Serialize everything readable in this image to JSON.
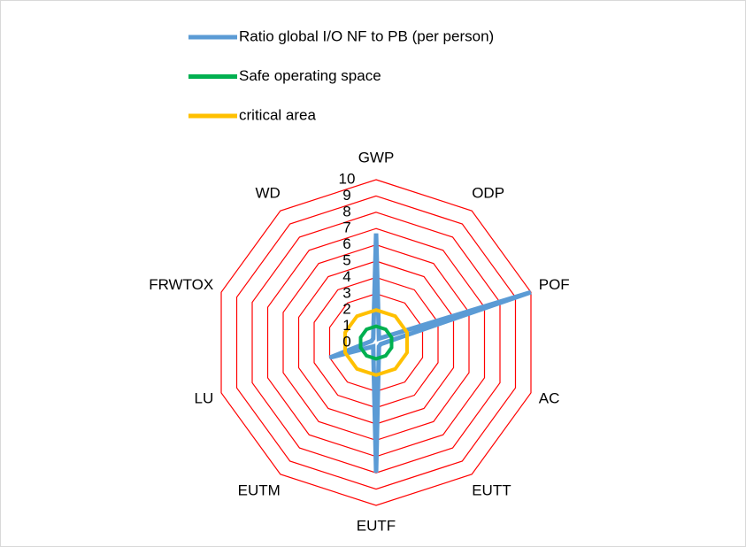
{
  "chart_data": {
    "type": "radar",
    "categories": [
      "GWP",
      "ODP",
      "POF",
      "AC",
      "EUTT",
      "EUTF",
      "EUTM",
      "LU",
      "FRWTOX",
      "WD"
    ],
    "series": [
      {
        "name": "Ratio global I/O NF to PB (per person)",
        "color": "#5b9bd5",
        "values": [
          6.7,
          0.3,
          10,
          0.3,
          0.3,
          8,
          0.3,
          3,
          0.3,
          0.3
        ]
      },
      {
        "name": "Safe operating space",
        "color": "#00b050",
        "values": [
          1,
          1,
          1,
          1,
          1,
          1,
          1,
          1,
          1,
          1
        ]
      },
      {
        "name": "critical area",
        "color": "#ffc000",
        "values": [
          2,
          2,
          2,
          2,
          2,
          2,
          2,
          2,
          2,
          2
        ]
      }
    ],
    "rlim": [
      0,
      10
    ],
    "rticks": [
      0,
      1,
      2,
      3,
      4,
      5,
      6,
      7,
      8,
      9,
      10
    ],
    "grid": true,
    "grid_color": "#ff0000",
    "legend": "top"
  }
}
